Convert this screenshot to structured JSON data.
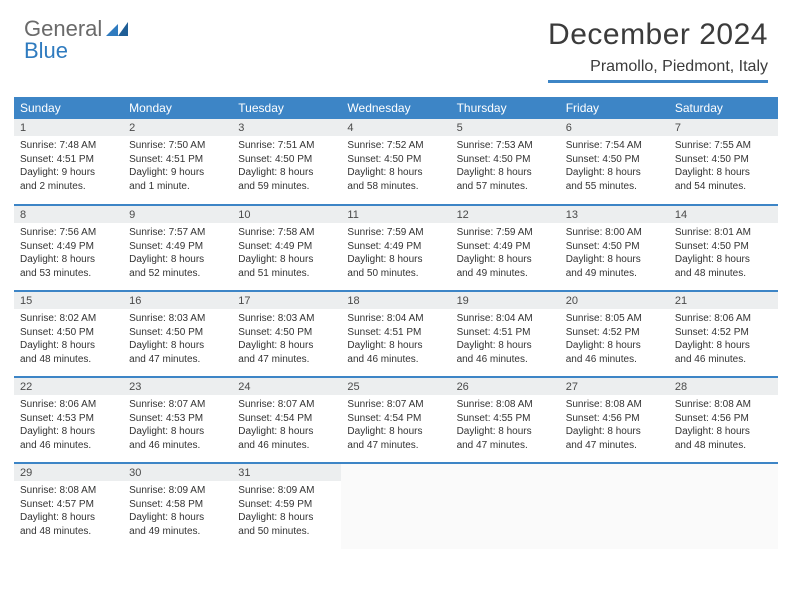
{
  "logo": {
    "line1": "General",
    "line2": "Blue"
  },
  "title": "December 2024",
  "location": "Pramollo, Piedmont, Italy",
  "colors": {
    "header_bar": "#3d85c6",
    "daynum_bg": "#eceeef",
    "text": "#333333",
    "logo_gray": "#6a6a6a",
    "logo_blue": "#2f7bbf"
  },
  "weekdays": [
    "Sunday",
    "Monday",
    "Tuesday",
    "Wednesday",
    "Thursday",
    "Friday",
    "Saturday"
  ],
  "weeks": [
    [
      {
        "n": "1",
        "sr": "Sunrise: 7:48 AM",
        "ss": "Sunset: 4:51 PM",
        "d1": "Daylight: 9 hours",
        "d2": "and 2 minutes."
      },
      {
        "n": "2",
        "sr": "Sunrise: 7:50 AM",
        "ss": "Sunset: 4:51 PM",
        "d1": "Daylight: 9 hours",
        "d2": "and 1 minute."
      },
      {
        "n": "3",
        "sr": "Sunrise: 7:51 AM",
        "ss": "Sunset: 4:50 PM",
        "d1": "Daylight: 8 hours",
        "d2": "and 59 minutes."
      },
      {
        "n": "4",
        "sr": "Sunrise: 7:52 AM",
        "ss": "Sunset: 4:50 PM",
        "d1": "Daylight: 8 hours",
        "d2": "and 58 minutes."
      },
      {
        "n": "5",
        "sr": "Sunrise: 7:53 AM",
        "ss": "Sunset: 4:50 PM",
        "d1": "Daylight: 8 hours",
        "d2": "and 57 minutes."
      },
      {
        "n": "6",
        "sr": "Sunrise: 7:54 AM",
        "ss": "Sunset: 4:50 PM",
        "d1": "Daylight: 8 hours",
        "d2": "and 55 minutes."
      },
      {
        "n": "7",
        "sr": "Sunrise: 7:55 AM",
        "ss": "Sunset: 4:50 PM",
        "d1": "Daylight: 8 hours",
        "d2": "and 54 minutes."
      }
    ],
    [
      {
        "n": "8",
        "sr": "Sunrise: 7:56 AM",
        "ss": "Sunset: 4:49 PM",
        "d1": "Daylight: 8 hours",
        "d2": "and 53 minutes."
      },
      {
        "n": "9",
        "sr": "Sunrise: 7:57 AM",
        "ss": "Sunset: 4:49 PM",
        "d1": "Daylight: 8 hours",
        "d2": "and 52 minutes."
      },
      {
        "n": "10",
        "sr": "Sunrise: 7:58 AM",
        "ss": "Sunset: 4:49 PM",
        "d1": "Daylight: 8 hours",
        "d2": "and 51 minutes."
      },
      {
        "n": "11",
        "sr": "Sunrise: 7:59 AM",
        "ss": "Sunset: 4:49 PM",
        "d1": "Daylight: 8 hours",
        "d2": "and 50 minutes."
      },
      {
        "n": "12",
        "sr": "Sunrise: 7:59 AM",
        "ss": "Sunset: 4:49 PM",
        "d1": "Daylight: 8 hours",
        "d2": "and 49 minutes."
      },
      {
        "n": "13",
        "sr": "Sunrise: 8:00 AM",
        "ss": "Sunset: 4:50 PM",
        "d1": "Daylight: 8 hours",
        "d2": "and 49 minutes."
      },
      {
        "n": "14",
        "sr": "Sunrise: 8:01 AM",
        "ss": "Sunset: 4:50 PM",
        "d1": "Daylight: 8 hours",
        "d2": "and 48 minutes."
      }
    ],
    [
      {
        "n": "15",
        "sr": "Sunrise: 8:02 AM",
        "ss": "Sunset: 4:50 PM",
        "d1": "Daylight: 8 hours",
        "d2": "and 48 minutes."
      },
      {
        "n": "16",
        "sr": "Sunrise: 8:03 AM",
        "ss": "Sunset: 4:50 PM",
        "d1": "Daylight: 8 hours",
        "d2": "and 47 minutes."
      },
      {
        "n": "17",
        "sr": "Sunrise: 8:03 AM",
        "ss": "Sunset: 4:50 PM",
        "d1": "Daylight: 8 hours",
        "d2": "and 47 minutes."
      },
      {
        "n": "18",
        "sr": "Sunrise: 8:04 AM",
        "ss": "Sunset: 4:51 PM",
        "d1": "Daylight: 8 hours",
        "d2": "and 46 minutes."
      },
      {
        "n": "19",
        "sr": "Sunrise: 8:04 AM",
        "ss": "Sunset: 4:51 PM",
        "d1": "Daylight: 8 hours",
        "d2": "and 46 minutes."
      },
      {
        "n": "20",
        "sr": "Sunrise: 8:05 AM",
        "ss": "Sunset: 4:52 PM",
        "d1": "Daylight: 8 hours",
        "d2": "and 46 minutes."
      },
      {
        "n": "21",
        "sr": "Sunrise: 8:06 AM",
        "ss": "Sunset: 4:52 PM",
        "d1": "Daylight: 8 hours",
        "d2": "and 46 minutes."
      }
    ],
    [
      {
        "n": "22",
        "sr": "Sunrise: 8:06 AM",
        "ss": "Sunset: 4:53 PM",
        "d1": "Daylight: 8 hours",
        "d2": "and 46 minutes."
      },
      {
        "n": "23",
        "sr": "Sunrise: 8:07 AM",
        "ss": "Sunset: 4:53 PM",
        "d1": "Daylight: 8 hours",
        "d2": "and 46 minutes."
      },
      {
        "n": "24",
        "sr": "Sunrise: 8:07 AM",
        "ss": "Sunset: 4:54 PM",
        "d1": "Daylight: 8 hours",
        "d2": "and 46 minutes."
      },
      {
        "n": "25",
        "sr": "Sunrise: 8:07 AM",
        "ss": "Sunset: 4:54 PM",
        "d1": "Daylight: 8 hours",
        "d2": "and 47 minutes."
      },
      {
        "n": "26",
        "sr": "Sunrise: 8:08 AM",
        "ss": "Sunset: 4:55 PM",
        "d1": "Daylight: 8 hours",
        "d2": "and 47 minutes."
      },
      {
        "n": "27",
        "sr": "Sunrise: 8:08 AM",
        "ss": "Sunset: 4:56 PM",
        "d1": "Daylight: 8 hours",
        "d2": "and 47 minutes."
      },
      {
        "n": "28",
        "sr": "Sunrise: 8:08 AM",
        "ss": "Sunset: 4:56 PM",
        "d1": "Daylight: 8 hours",
        "d2": "and 48 minutes."
      }
    ],
    [
      {
        "n": "29",
        "sr": "Sunrise: 8:08 AM",
        "ss": "Sunset: 4:57 PM",
        "d1": "Daylight: 8 hours",
        "d2": "and 48 minutes."
      },
      {
        "n": "30",
        "sr": "Sunrise: 8:09 AM",
        "ss": "Sunset: 4:58 PM",
        "d1": "Daylight: 8 hours",
        "d2": "and 49 minutes."
      },
      {
        "n": "31",
        "sr": "Sunrise: 8:09 AM",
        "ss": "Sunset: 4:59 PM",
        "d1": "Daylight: 8 hours",
        "d2": "and 50 minutes."
      },
      null,
      null,
      null,
      null
    ]
  ]
}
